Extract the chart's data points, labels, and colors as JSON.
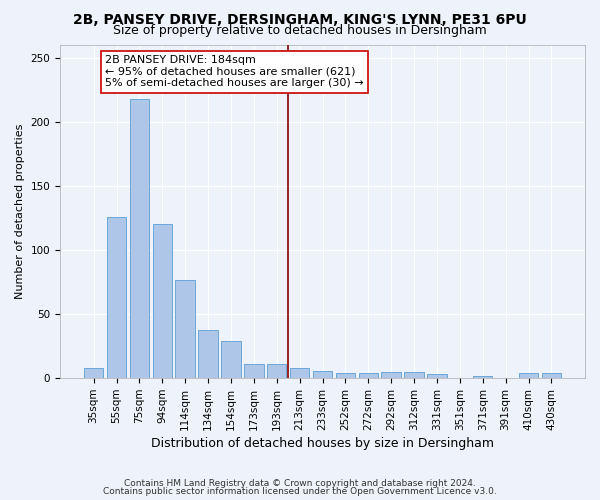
{
  "title1": "2B, PANSEY DRIVE, DERSINGHAM, KING'S LYNN, PE31 6PU",
  "title2": "Size of property relative to detached houses in Dersingham",
  "xlabel": "Distribution of detached houses by size in Dersingham",
  "ylabel": "Number of detached properties",
  "footnote1": "Contains HM Land Registry data © Crown copyright and database right 2024.",
  "footnote2": "Contains public sector information licensed under the Open Government Licence v3.0.",
  "categories": [
    "35sqm",
    "55sqm",
    "75sqm",
    "94sqm",
    "114sqm",
    "134sqm",
    "154sqm",
    "173sqm",
    "193sqm",
    "213sqm",
    "233sqm",
    "252sqm",
    "272sqm",
    "292sqm",
    "312sqm",
    "331sqm",
    "351sqm",
    "371sqm",
    "391sqm",
    "410sqm",
    "430sqm"
  ],
  "values": [
    8,
    126,
    218,
    120,
    77,
    38,
    29,
    11,
    11,
    8,
    6,
    4,
    4,
    5,
    5,
    3,
    0,
    2,
    0,
    4,
    4
  ],
  "bar_color": "#aec6e8",
  "bar_edge_color": "#5a9fd4",
  "vline_x_index": 8.5,
  "vline_color": "#8b0000",
  "annotation_text": "2B PANSEY DRIVE: 184sqm\n← 95% of detached houses are smaller (621)\n5% of semi-detached houses are larger (30) →",
  "annotation_box_color": "#ffffff",
  "annotation_box_edge_color": "#cc0000",
  "ylim": [
    0,
    260
  ],
  "background_color": "#eef2fa",
  "grid_color": "#ffffff",
  "title1_fontsize": 10,
  "title2_fontsize": 9,
  "xlabel_fontsize": 9,
  "ylabel_fontsize": 8,
  "tick_fontsize": 7.5,
  "annotation_fontsize": 8
}
